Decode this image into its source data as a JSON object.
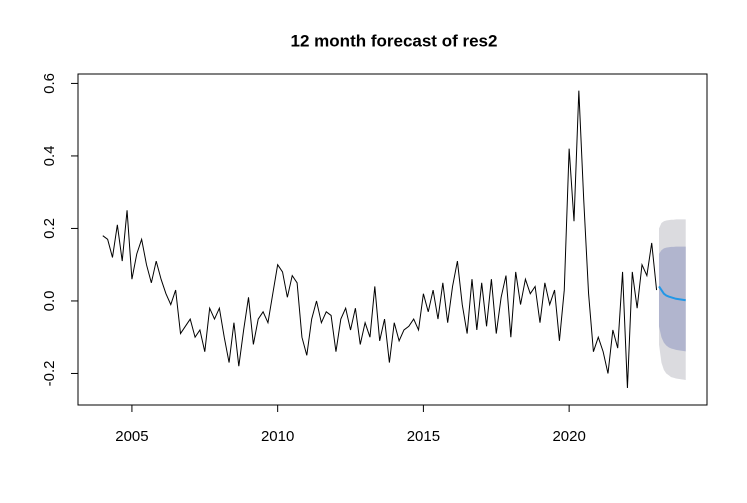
{
  "chart_data": {
    "type": "forecast",
    "title": "12 month forecast of res2",
    "xlim": [
      2003.15,
      2024.73
    ],
    "ylim": [
      -0.287,
      0.626
    ],
    "xticks": [
      2005,
      2010,
      2015,
      2020
    ],
    "yticks": [
      -0.2,
      {
        "value": 0,
        "label": "0.0"
      },
      0.2,
      0.4,
      0.6
    ],
    "grid": false,
    "series": [
      {
        "color": "#000000",
        "x": [
          2004,
          2004.167,
          2004.333,
          2004.5,
          2004.667,
          2004.833,
          2005,
          2005.167,
          2005.333,
          2005.5,
          2005.667,
          2005.833,
          2006,
          2006.167,
          2006.333,
          2006.5,
          2006.667,
          2006.833,
          2007,
          2007.167,
          2007.333,
          2007.5,
          2007.667,
          2007.833,
          2008,
          2008.167,
          2008.333,
          2008.5,
          2008.667,
          2008.833,
          2009,
          2009.167,
          2009.333,
          2009.5,
          2009.667,
          2009.833,
          2010,
          2010.167,
          2010.333,
          2010.5,
          2010.667,
          2010.833,
          2011,
          2011.167,
          2011.333,
          2011.5,
          2011.667,
          2011.833,
          2012,
          2012.167,
          2012.333,
          2012.5,
          2012.667,
          2012.833,
          2013,
          2013.167,
          2013.333,
          2013.5,
          2013.667,
          2013.833,
          2014,
          2014.167,
          2014.333,
          2014.5,
          2014.667,
          2014.833,
          2015,
          2015.167,
          2015.333,
          2015.5,
          2015.667,
          2015.833,
          2016,
          2016.167,
          2016.333,
          2016.5,
          2016.667,
          2016.833,
          2017,
          2017.167,
          2017.333,
          2017.5,
          2017.667,
          2017.833,
          2018,
          2018.167,
          2018.333,
          2018.5,
          2018.667,
          2018.833,
          2019,
          2019.167,
          2019.333,
          2019.5,
          2019.667,
          2019.833,
          2020,
          2020.167,
          2020.333,
          2020.5,
          2020.667,
          2020.833,
          2021,
          2021.167,
          2021.333,
          2021.5,
          2021.667,
          2021.833,
          2022,
          2022.167,
          2022.333,
          2022.5,
          2022.667,
          2022.833,
          2023
        ],
        "values": [
          0.18,
          0.17,
          0.12,
          0.21,
          0.11,
          0.25,
          0.06,
          0.13,
          0.17,
          0.1,
          0.05,
          0.11,
          0.06,
          0.02,
          -0.01,
          0.03,
          -0.09,
          -0.07,
          -0.05,
          -0.1,
          -0.08,
          -0.14,
          -0.02,
          -0.05,
          -0.02,
          -0.1,
          -0.17,
          -0.06,
          -0.18,
          -0.08,
          0.01,
          -0.12,
          -0.05,
          -0.03,
          -0.06,
          0.02,
          0.1,
          0.08,
          0.01,
          0.07,
          0.05,
          -0.1,
          -0.15,
          -0.05,
          0.0,
          -0.06,
          -0.03,
          -0.04,
          -0.14,
          -0.05,
          -0.02,
          -0.08,
          -0.02,
          -0.12,
          -0.06,
          -0.1,
          0.04,
          -0.11,
          -0.05,
          -0.17,
          -0.06,
          -0.11,
          -0.08,
          -0.07,
          -0.05,
          -0.08,
          0.02,
          -0.03,
          0.03,
          -0.05,
          0.05,
          -0.06,
          0.04,
          0.11,
          -0.01,
          -0.09,
          0.06,
          -0.08,
          0.05,
          -0.07,
          0.06,
          -0.09,
          0.01,
          0.07,
          -0.1,
          0.08,
          -0.01,
          0.06,
          0.02,
          0.04,
          -0.06,
          0.05,
          -0.01,
          0.03,
          -0.11,
          0.03,
          0.42,
          0.22,
          0.58,
          0.28,
          0.02,
          -0.14,
          -0.1,
          -0.14,
          -0.2,
          -0.08,
          -0.13,
          0.08,
          -0.24,
          0.08,
          -0.02,
          0.1,
          0.07,
          0.16,
          0.03
        ]
      },
      {
        "color": "#2297e6",
        "x": [
          2023.083,
          2023.167,
          2023.25,
          2023.333,
          2023.417,
          2023.5,
          2023.583,
          2023.667,
          2023.75,
          2023.833,
          2023.917,
          2024
        ],
        "values": [
          0.04,
          0.03,
          0.02,
          0.015,
          0.012,
          0.01,
          0.008,
          0.006,
          0.005,
          0.004,
          0.003,
          0.002
        ]
      }
    ],
    "bands": [
      {
        "color": "#dbdbdf",
        "lower": [
          -0.12,
          -0.17,
          -0.19,
          -0.2,
          -0.205,
          -0.21,
          -0.212,
          -0.214,
          -0.215,
          -0.216,
          -0.217,
          -0.218
        ],
        "upper": [
          0.2,
          0.215,
          0.22,
          0.222,
          0.223,
          0.224,
          0.224,
          0.225,
          0.225,
          0.225,
          0.225,
          0.225
        ]
      },
      {
        "color": "#b1b5ce",
        "lower": [
          -0.07,
          -0.1,
          -0.115,
          -0.123,
          -0.128,
          -0.131,
          -0.133,
          -0.135,
          -0.136,
          -0.137,
          -0.138,
          -0.139
        ],
        "upper": [
          0.13,
          0.14,
          0.145,
          0.147,
          0.148,
          0.149,
          0.149,
          0.15,
          0.15,
          0.15,
          0.15,
          0.15
        ]
      }
    ]
  }
}
